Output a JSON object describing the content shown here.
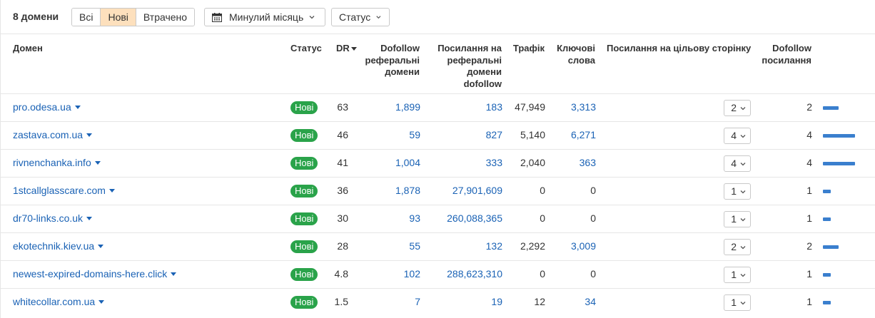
{
  "toolbar": {
    "count_label": "8 домени",
    "filters": [
      "Всі",
      "Нові",
      "Втрачено"
    ],
    "active_filter": "Нові",
    "period": "Минулий місяць",
    "status": "Статус"
  },
  "columns": {
    "domain": "Домен",
    "status": "Статус",
    "dr": "DR",
    "dofollow_ref_domains": "Dofollow реферальні домени",
    "links_to_ref_domains": "Посилання на реферальні домени dofollow",
    "traffic": "Трафік",
    "keywords": "Ключові слова",
    "links_to_target": "Посилання на цільову сторінку",
    "dofollow_links": "Dofollow посилання"
  },
  "rows": [
    {
      "domain": "pro.odesa.ua",
      "status": "Нові",
      "dr": "63",
      "doref": "1,899",
      "linkref": "183",
      "traffic": "47,949",
      "keywords": "3,313",
      "target": "2",
      "dflinks": "2",
      "dflinks_value": 2
    },
    {
      "domain": "zastava.com.ua",
      "status": "Нові",
      "dr": "46",
      "doref": "59",
      "linkref": "827",
      "traffic": "5,140",
      "keywords": "6,271",
      "target": "4",
      "dflinks": "4",
      "dflinks_value": 4
    },
    {
      "domain": "rivnenchanka.info",
      "status": "Нові",
      "dr": "41",
      "doref": "1,004",
      "linkref": "333",
      "traffic": "2,040",
      "keywords": "363",
      "target": "4",
      "dflinks": "4",
      "dflinks_value": 4
    },
    {
      "domain": "1stcallglasscare.com",
      "status": "Нові",
      "dr": "36",
      "doref": "1,878",
      "linkref": "27,901,609",
      "traffic": "0",
      "keywords": "0",
      "target": "1",
      "dflinks": "1",
      "dflinks_value": 1
    },
    {
      "domain": "dr70-links.co.uk",
      "status": "Нові",
      "dr": "30",
      "doref": "93",
      "linkref": "260,088,365",
      "traffic": "0",
      "keywords": "0",
      "target": "1",
      "dflinks": "1",
      "dflinks_value": 1
    },
    {
      "domain": "ekotechnik.kiev.ua",
      "status": "Нові",
      "dr": "28",
      "doref": "55",
      "linkref": "132",
      "traffic": "2,292",
      "keywords": "3,009",
      "target": "2",
      "dflinks": "2",
      "dflinks_value": 2
    },
    {
      "domain": "newest-expired-domains-here.click",
      "status": "Нові",
      "dr": "4.8",
      "doref": "102",
      "linkref": "288,623,310",
      "traffic": "0",
      "keywords": "0",
      "target": "1",
      "dflinks": "1",
      "dflinks_value": 1
    },
    {
      "domain": "whitecollar.com.ua",
      "status": "Нові",
      "dr": "1.5",
      "doref": "7",
      "linkref": "19",
      "traffic": "12",
      "keywords": "34",
      "target": "1",
      "dflinks": "1",
      "dflinks_value": 1
    }
  ],
  "colors": {
    "link": "#1a62b5",
    "badge_green": "#2aa34a",
    "bar_blue": "#3a7fce",
    "active_segment": "#fde0bd"
  }
}
